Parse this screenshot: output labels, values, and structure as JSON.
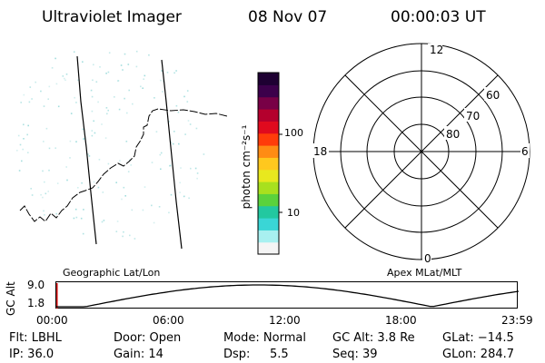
{
  "header": {
    "title": "Ultraviolet Imager",
    "date": "08 Nov 07",
    "time": "00:00:03 UT"
  },
  "colorbar": {
    "label": "photon cm⁻²s⁻¹",
    "ticks": [
      "100",
      "10"
    ],
    "colors": [
      "#f4f4f4",
      "#a8f0f0",
      "#3ad6d6",
      "#22c8a0",
      "#5ad23c",
      "#a8e01e",
      "#e8e81e",
      "#ffc81e",
      "#ff8c14",
      "#ff3c0a",
      "#e00a1e",
      "#b4002d",
      "#780046",
      "#3c004b",
      "#1e0032"
    ]
  },
  "polar": {
    "mlt_labels": {
      "top": "12",
      "right": "6",
      "bottom": "0",
      "left": "18"
    },
    "lat_labels": [
      "60",
      "70",
      "80"
    ]
  },
  "gc_alt": {
    "axis_label": "GC Alt",
    "ymax": "9.0",
    "ymin": "1.8",
    "left_label": "Geographic Lat/Lon",
    "right_label": "Apex MLat/MLT",
    "x_ticks": [
      "00:00",
      "06:00",
      "12:00",
      "18:00",
      "23:59"
    ]
  },
  "status": {
    "row1": {
      "flt": "Flt: LBHL",
      "door": "Door: Open",
      "mode": "Mode: Normal",
      "gcalt": "GC Alt: 3.8 Re",
      "glat": "GLat: −14.5"
    },
    "row2": {
      "ip": "IP: 36.0",
      "gain": "Gain: 14",
      "dsp_label": "Dsp:",
      "dsp_value": "5.5",
      "seq": "Seq: 39",
      "glon": "GLon: 284.7"
    }
  },
  "colors": {
    "accent_marker": "#d00000",
    "grid": "#000000",
    "aurora_dots": "#8fd6d6"
  }
}
